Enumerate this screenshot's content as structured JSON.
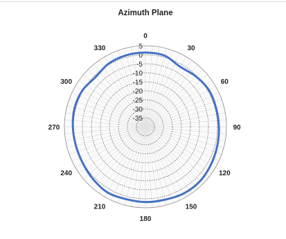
{
  "chart_data": {
    "type": "polar-line",
    "title": "Azimuth Plane",
    "radial_axis": {
      "min": -40,
      "max": 5,
      "ticks": [
        5,
        0,
        -5,
        -10,
        -15,
        -20,
        -25,
        -30,
        -35
      ],
      "tick_labels": [
        "5",
        "0",
        "-5",
        "-10",
        "-15",
        "-20",
        "-25",
        "-30",
        "-35"
      ]
    },
    "angular_axis": {
      "direction": "clockwise",
      "zero_at": "top",
      "ticks": [
        0,
        30,
        60,
        90,
        120,
        150,
        180,
        210,
        240,
        270,
        300,
        330
      ],
      "tick_labels": [
        "0",
        "30",
        "60",
        "90",
        "120",
        "150",
        "180",
        "210",
        "240",
        "270",
        "300",
        "330"
      ]
    },
    "grid": true,
    "series": [
      {
        "color": "#4472c4",
        "angles": [
          0,
          15,
          30,
          45,
          60,
          75,
          90,
          105,
          120,
          135,
          150,
          165,
          180,
          195,
          210,
          225,
          240,
          255,
          270,
          285,
          300,
          315,
          330,
          345
        ],
        "values": [
          1.2,
          0.9,
          -1.5,
          -0.4,
          0.7,
          0.6,
          0.8,
          1.3,
          2.0,
          2.8,
          2.7,
          1.9,
          1.8,
          1.6,
          2.1,
          1.1,
          0.2,
          0.0,
          0.3,
          0.7,
          0.4,
          -0.9,
          0.6,
          1.1
        ]
      }
    ]
  }
}
